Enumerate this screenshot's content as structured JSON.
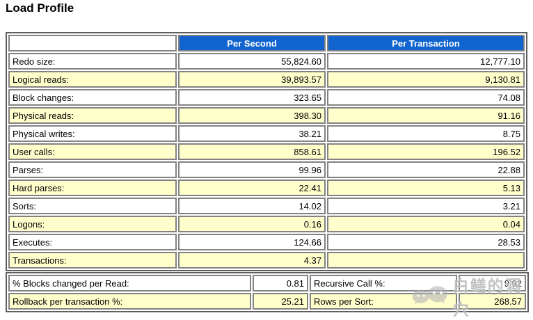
{
  "page": {
    "title": "Load Profile"
  },
  "colors": {
    "header_bg": "#1164CF",
    "header_text": "#FFFFFF",
    "highlight_row": "#FFFFCC",
    "cell_border": "#828282",
    "table_border": "#5E5E5E"
  },
  "load_profile_table": {
    "headers": {
      "corner": "",
      "per_second": "Per Second",
      "per_transaction": "Per Transaction"
    },
    "rows": [
      {
        "label": "Redo size:",
        "per_second": "55,824.60",
        "per_transaction": "12,777.10",
        "highlight": false
      },
      {
        "label": "Logical reads:",
        "per_second": "39,893.57",
        "per_transaction": "9,130.81",
        "highlight": true
      },
      {
        "label": "Block changes:",
        "per_second": "323.65",
        "per_transaction": "74.08",
        "highlight": false
      },
      {
        "label": "Physical reads:",
        "per_second": "398.30",
        "per_transaction": "91.16",
        "highlight": true
      },
      {
        "label": "Physical writes:",
        "per_second": "38.21",
        "per_transaction": "8.75",
        "highlight": false
      },
      {
        "label": "User calls:",
        "per_second": "858.61",
        "per_transaction": "196.52",
        "highlight": true
      },
      {
        "label": "Parses:",
        "per_second": "99.96",
        "per_transaction": "22.88",
        "highlight": false
      },
      {
        "label": "Hard parses:",
        "per_second": "22.41",
        "per_transaction": "5.13",
        "highlight": true
      },
      {
        "label": "Sorts:",
        "per_second": "14.02",
        "per_transaction": "3.21",
        "highlight": false
      },
      {
        "label": "Logons:",
        "per_second": "0.16",
        "per_transaction": "0.04",
        "highlight": true
      },
      {
        "label": "Executes:",
        "per_second": "124.66",
        "per_transaction": "28.53",
        "highlight": false
      },
      {
        "label": "Transactions:",
        "per_second": "4.37",
        "per_transaction": "",
        "highlight": true
      }
    ]
  },
  "ratio_table": {
    "rows": [
      {
        "label1": "% Blocks changed per Read:",
        "value1": "0.81",
        "label2": "Recursive Call %:",
        "value2": "9.92",
        "highlight": false
      },
      {
        "label1": "Rollback per transaction %:",
        "value1": "25.21",
        "label2": "Rows per Sort:",
        "value2": "268.57",
        "highlight": true
      }
    ]
  },
  "watermark": {
    "icon": "wechat-bubbles-icon",
    "text": "白鳝的洞穴"
  }
}
